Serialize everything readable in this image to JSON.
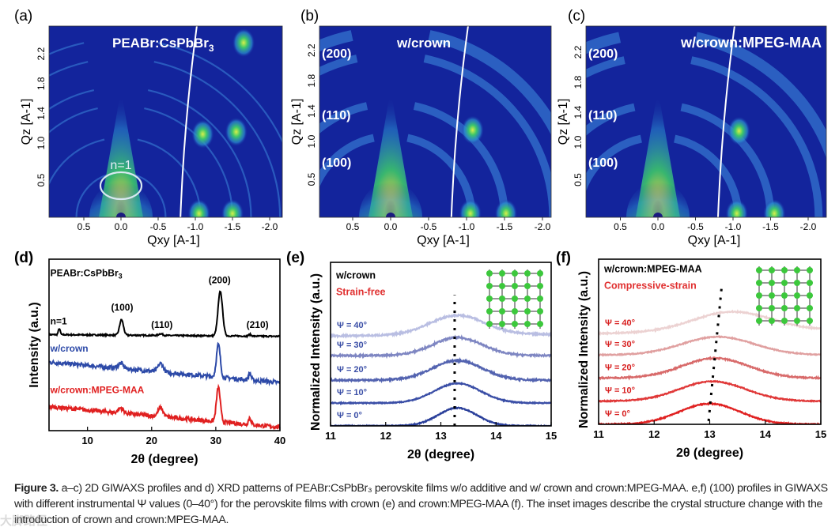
{
  "figure": {
    "panel_labels": [
      "(a)",
      "(b)",
      "(c)",
      "(d)",
      "(e)",
      "(f)"
    ],
    "caption_label": "Figure 3.",
    "caption_text": "a–c) 2D GIWAXS profiles and d) XRD patterns of PEABr:CsPbBr₃ perovskite films w/o additive and w/ crown and crown:MPEG-MAA. e,f) (100) profiles in GIWAXS with different instrumental Ψ values (0–40°) for the perovskite films with crown (e) and crown:MPEG-MAA (f). The inset images describe the crystal structure change with the introduction of crown and crown:MPEG-MAA.",
    "watermark": "大脚路径"
  },
  "chart_data": [
    {
      "id": "a",
      "type": "heatmap",
      "title": "PEABr:CsPbBr3",
      "xlabel": "Qxy [A-1]",
      "ylabel": "Qz [A-1]",
      "xticks": [
        "0.5",
        "0.0",
        "-0.5",
        "-1.0",
        "-1.5",
        "-2.0"
      ],
      "yticks": [
        "0.5",
        "1.0",
        "1.4",
        "1.8",
        "2.2"
      ],
      "xlim": [
        1.0,
        -2.1
      ],
      "ylim": [
        0,
        2.45
      ],
      "annotations": [
        "n=1"
      ],
      "rings_q": [
        0.6,
        1.07,
        1.5,
        1.75,
        2.14,
        2.4
      ],
      "spots": [
        [
          -1.1,
          1.12
        ],
        [
          -1.55,
          1.15
        ],
        [
          -1.65,
          2.35
        ],
        [
          -1.05,
          0.05
        ],
        [
          -1.5,
          0.05
        ]
      ]
    },
    {
      "id": "b",
      "type": "heatmap",
      "title": "w/crown",
      "xlabel": "Qxy [A-1]",
      "ylabel": "Qz [A-1]",
      "xticks": [
        "0.5",
        "0.0",
        "-0.5",
        "-1.0",
        "-1.5",
        "-2.0"
      ],
      "yticks": [
        "0.5",
        "1.0",
        "1.4",
        "1.8",
        "2.2"
      ],
      "xlim": [
        1.0,
        -2.1
      ],
      "ylim": [
        0,
        2.45
      ],
      "annotations": [
        "(200)",
        "(110)",
        "(100)"
      ],
      "rings_q": [
        1.07,
        1.5,
        2.14,
        2.45
      ],
      "spots": [
        [
          -1.08,
          1.15
        ],
        [
          -1.05,
          0.05
        ],
        [
          -1.52,
          0.05
        ]
      ]
    },
    {
      "id": "c",
      "type": "heatmap",
      "title": "w/crown:MPEG-MAA",
      "xlabel": "Qxy [A-1]",
      "ylabel": "Qz [A-1]",
      "xticks": [
        "0.5",
        "0.0",
        "-0.5",
        "-1.0",
        "-1.5",
        "-2.0"
      ],
      "yticks": [
        "0.5",
        "1.0",
        "1.4",
        "1.8",
        "2.2"
      ],
      "xlim": [
        1.0,
        -2.1
      ],
      "ylim": [
        0,
        2.45
      ],
      "annotations": [
        "(200)",
        "(110)",
        "(100)"
      ],
      "rings_q": [
        1.07,
        1.5,
        2.14,
        2.45
      ],
      "spots": [
        [
          -1.08,
          1.15
        ],
        [
          -1.05,
          0.05
        ],
        [
          -1.55,
          0.05
        ]
      ]
    },
    {
      "id": "d",
      "type": "line",
      "title": "",
      "xlabel": "2θ (degree)",
      "ylabel": "Intensity (a.u.)",
      "xlim": [
        4,
        40
      ],
      "ylim": [
        0,
        1
      ],
      "xticks": [
        10,
        20,
        30,
        40
      ],
      "annotations": [
        {
          "text": "PEABr:CsPbBr₃",
          "x": 4.2,
          "y": 0.9,
          "color": "#000000"
        },
        {
          "text": "n=1",
          "x": 4.2,
          "y": 0.62,
          "color": "#000000"
        },
        {
          "text": "(100)",
          "x": 15.4,
          "y": 0.7,
          "color": "#000000"
        },
        {
          "text": "(110)",
          "x": 21.6,
          "y": 0.6,
          "color": "#000000"
        },
        {
          "text": "(200)",
          "x": 30.6,
          "y": 0.86,
          "color": "#000000"
        },
        {
          "text": "(210)",
          "x": 36.5,
          "y": 0.6,
          "color": "#000000"
        },
        {
          "text": "w/crown",
          "x": 4.2,
          "y": 0.46,
          "color": "#2d4aa8"
        },
        {
          "text": "w/crown:MPEG-MAA",
          "x": 4.2,
          "y": 0.22,
          "color": "#e02020"
        }
      ],
      "series": [
        {
          "name": "PEABr:CsPbBr3",
          "color": "#000000",
          "base": [
            0.56,
            0.55
          ],
          "noise": 0.004,
          "peaks": [
            [
              5.6,
              0.035,
              0.15
            ],
            [
              15.3,
              0.09,
              0.3
            ],
            [
              21.4,
              0.01,
              0.3
            ],
            [
              30.7,
              0.26,
              0.35
            ],
            [
              35.3,
              0.01,
              0.2
            ]
          ]
        },
        {
          "name": "w/crown",
          "color": "#2d4aa8",
          "base": [
            0.4,
            0.28
          ],
          "noise": 0.012,
          "peaks": [
            [
              15.2,
              0.03,
              0.4
            ],
            [
              21.4,
              0.05,
              0.4
            ],
            [
              30.4,
              0.19,
              0.3
            ],
            [
              35.3,
              0.04,
              0.2
            ]
          ]
        },
        {
          "name": "w/crown:MPEG-MAA",
          "color": "#e02020",
          "base": [
            0.14,
            0.02
          ],
          "noise": 0.012,
          "peaks": [
            [
              15.2,
              0.03,
              0.4
            ],
            [
              21.4,
              0.05,
              0.4
            ],
            [
              30.4,
              0.2,
              0.3
            ],
            [
              35.3,
              0.04,
              0.2
            ]
          ]
        }
      ]
    },
    {
      "id": "e",
      "type": "line",
      "title": "",
      "xlabel": "2θ (degree)",
      "ylabel": "Normalized Intensity (a.u.)",
      "xlim": [
        11,
        15
      ],
      "ylim": [
        0,
        1
      ],
      "xticks": [
        11,
        12,
        13,
        14,
        15
      ],
      "annotations": [
        {
          "text": "w/crown",
          "x": 11.1,
          "y": 0.9,
          "color": "#000000"
        },
        {
          "text": "Strain-free",
          "x": 11.1,
          "y": 0.8,
          "color": "#e03030"
        }
      ],
      "peak_guide": [
        [
          13.25,
          0.0
        ],
        [
          13.25,
          0.8
        ]
      ],
      "series": [
        {
          "name": "Ψ = 0°",
          "color": "#2a3f9a",
          "base": [
            0.0,
            0.0
          ],
          "noise": 0.003,
          "peaks": [
            [
              13.3,
              0.11,
              0.35
            ]
          ]
        },
        {
          "name": "Ψ = 10°",
          "color": "#3a4ea6",
          "base": [
            0.14,
            0.14
          ],
          "noise": 0.003,
          "peaks": [
            [
              13.3,
              0.12,
              0.42
            ]
          ]
        },
        {
          "name": "Ψ = 20°",
          "color": "#5363b0",
          "base": [
            0.28,
            0.28
          ],
          "noise": 0.005,
          "peaks": [
            [
              13.3,
              0.12,
              0.45
            ]
          ]
        },
        {
          "name": "Ψ = 30°",
          "color": "#7e86c2",
          "base": [
            0.43,
            0.43
          ],
          "noise": 0.005,
          "peaks": [
            [
              13.3,
              0.11,
              0.45
            ]
          ]
        },
        {
          "name": "Ψ = 40°",
          "color": "#b9bee2",
          "base": [
            0.55,
            0.56
          ],
          "noise": 0.005,
          "peaks": [
            [
              13.3,
              0.12,
              0.5
            ]
          ]
        }
      ]
    },
    {
      "id": "f",
      "type": "line",
      "title": "",
      "xlabel": "2θ (degree)",
      "ylabel": "Normalized Intensity (a.u.)",
      "xlim": [
        11,
        15
      ],
      "ylim": [
        0,
        1
      ],
      "xticks": [
        11,
        12,
        13,
        14,
        15
      ],
      "annotations": [
        {
          "text": "w/crown:MPEG-MAA",
          "x": 11.1,
          "y": 0.92,
          "color": "#000000"
        },
        {
          "text": "Compressive-strain",
          "x": 11.1,
          "y": 0.82,
          "color": "#e03030"
        }
      ],
      "peak_guide": [
        [
          12.98,
          0.02
        ],
        [
          13.22,
          0.85
        ]
      ],
      "series": [
        {
          "name": "Ψ = 0°",
          "color": "#e02020",
          "base": [
            0.0,
            0.0
          ],
          "noise": 0.003,
          "peaks": [
            [
              13.0,
              0.125,
              0.55
            ]
          ]
        },
        {
          "name": "Ψ = 10°",
          "color": "#e03838",
          "base": [
            0.14,
            0.14
          ],
          "noise": 0.003,
          "peaks": [
            [
              13.05,
              0.12,
              0.6
            ]
          ]
        },
        {
          "name": "Ψ = 20°",
          "color": "#d86a6a",
          "base": [
            0.28,
            0.28
          ],
          "noise": 0.004,
          "peaks": [
            [
              13.1,
              0.12,
              0.6
            ]
          ]
        },
        {
          "name": "Ψ = 30°",
          "color": "#e0a0a0",
          "base": [
            0.42,
            0.42
          ],
          "noise": 0.003,
          "peaks": [
            [
              13.15,
              0.11,
              0.65
            ]
          ]
        },
        {
          "name": "Ψ = 40°",
          "color": "#ecd2d2",
          "base": [
            0.55,
            0.57
          ],
          "noise": 0.004,
          "peaks": [
            [
              13.4,
              0.12,
              0.7
            ]
          ]
        }
      ]
    }
  ]
}
